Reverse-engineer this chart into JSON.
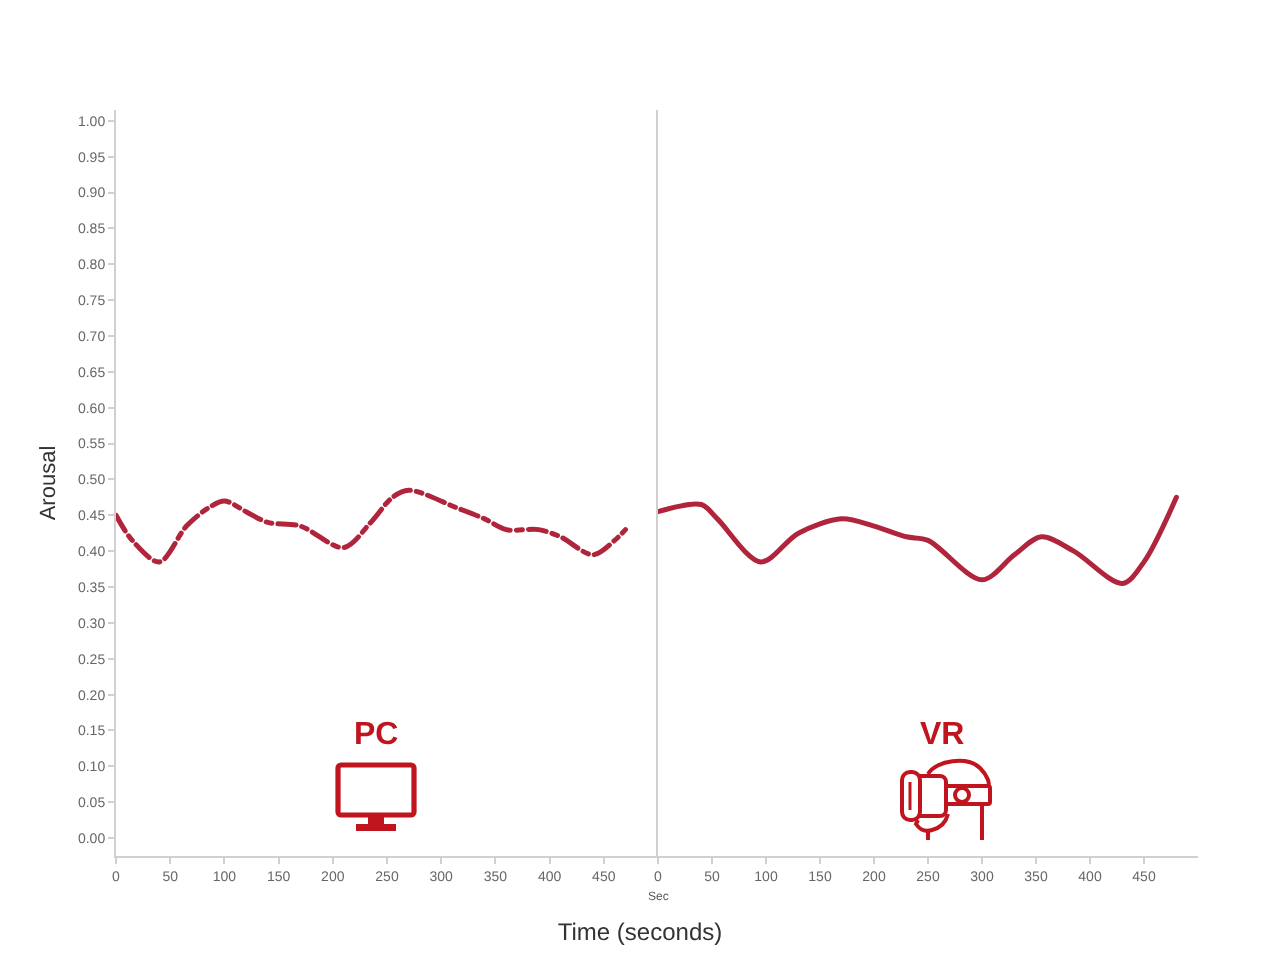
{
  "chart_data": [
    {
      "type": "line",
      "ylabel": "Arousal",
      "xlabel": "Time (seconds)",
      "annotations": [
        "PC"
      ],
      "line_style": "dashdot",
      "x": [
        0,
        15,
        40,
        65,
        85,
        100,
        120,
        140,
        170,
        210,
        235,
        255,
        270,
        315,
        340,
        360,
        390,
        410,
        440,
        460,
        470
      ],
      "series": [
        {
          "color": "#b0243c",
          "values": [
            0.45,
            0.415,
            0.385,
            0.435,
            0.46,
            0.47,
            0.455,
            0.44,
            0.435,
            0.405,
            0.44,
            0.475,
            0.485,
            0.46,
            0.445,
            0.43,
            0.43,
            0.42,
            0.395,
            0.415,
            0.43
          ]
        }
      ],
      "xlim": [
        0,
        500
      ],
      "xticks": [
        0,
        50,
        100,
        150,
        200,
        250,
        300,
        350,
        400,
        450
      ],
      "ylim": [
        -0.025,
        1.015
      ],
      "yticks": [
        {
          "value": 0,
          "label": "0.00"
        },
        0.05,
        {
          "value": 0.1,
          "label": "0.10"
        },
        0.15,
        {
          "value": 0.2,
          "label": "0.20"
        },
        0.25,
        {
          "value": 0.3,
          "label": "0.30"
        },
        0.35,
        {
          "value": 0.4,
          "label": "0.40"
        },
        0.45,
        {
          "value": 0.5,
          "label": "0.50"
        },
        0.55,
        {
          "value": 0.6,
          "label": "0.60"
        },
        0.65,
        {
          "value": 0.7,
          "label": "0.70"
        },
        0.75,
        {
          "value": 0.8,
          "label": "0.80"
        },
        0.85,
        {
          "value": 0.9,
          "label": "0.90"
        },
        0.95,
        {
          "value": 1,
          "label": "1.00"
        }
      ]
    },
    {
      "type": "line",
      "annotations": [
        "VR",
        "Sec"
      ],
      "line_style": "solid",
      "x": [
        0,
        40,
        55,
        95,
        130,
        170,
        200,
        230,
        250,
        300,
        330,
        355,
        385,
        430,
        450,
        480
      ],
      "series": [
        {
          "color": "#b0243c",
          "values": [
            0.455,
            0.465,
            0.445,
            0.385,
            0.425,
            0.445,
            0.435,
            0.42,
            0.415,
            0.36,
            0.395,
            0.42,
            0.4,
            0.355,
            0.385,
            0.475
          ]
        }
      ],
      "xlim": [
        0,
        500
      ],
      "xticks": [
        0,
        50,
        100,
        150,
        200,
        250,
        300,
        350,
        400,
        450
      ],
      "ylim": [
        -0.025,
        1.015
      ],
      "tick_labels": "x"
    }
  ]
}
